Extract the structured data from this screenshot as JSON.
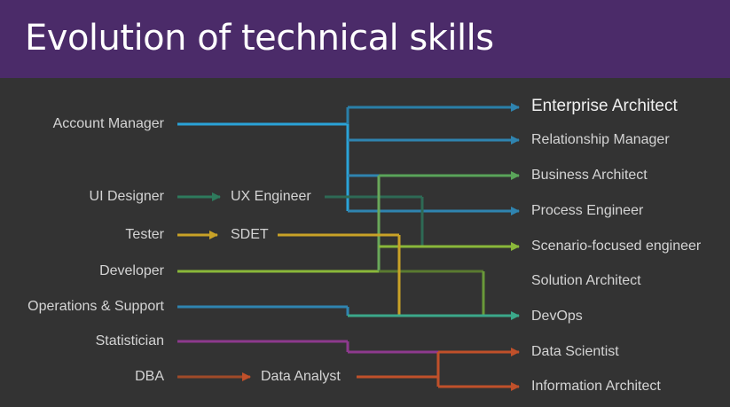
{
  "title": "Evolution of technical skills",
  "sources": {
    "account_manager": "Account Manager",
    "ui_designer": "UI Designer",
    "tester": "Tester",
    "developer": "Developer",
    "ops_support": "Operations & Support",
    "statistician": "Statistician",
    "dba": "DBA"
  },
  "intermediates": {
    "ux_engineer": "UX Engineer",
    "sdet": "SDET",
    "data_analyst": "Data Analyst"
  },
  "targets": {
    "enterprise_architect": "Enterprise Architect",
    "relationship_manager": "Relationship Manager",
    "business_architect": "Business Architect",
    "process_engineer": "Process Engineer",
    "scenario_engineer": "Scenario-focused engineer",
    "solution_architect": "Solution Architect",
    "devops": "DevOps",
    "data_scientist": "Data Scientist",
    "information_architect": "Information Architect"
  },
  "colors": {
    "title_bg": "#4b2b69",
    "background": "#333333",
    "account_manager": "#2aa3d8",
    "ui_designer": "#2e7a5c",
    "tester": "#c9a227",
    "developer": "#8ab83a",
    "ops_support": "#2f84b0",
    "statistician": "#8e3a8e",
    "dba": "#c0502a"
  }
}
